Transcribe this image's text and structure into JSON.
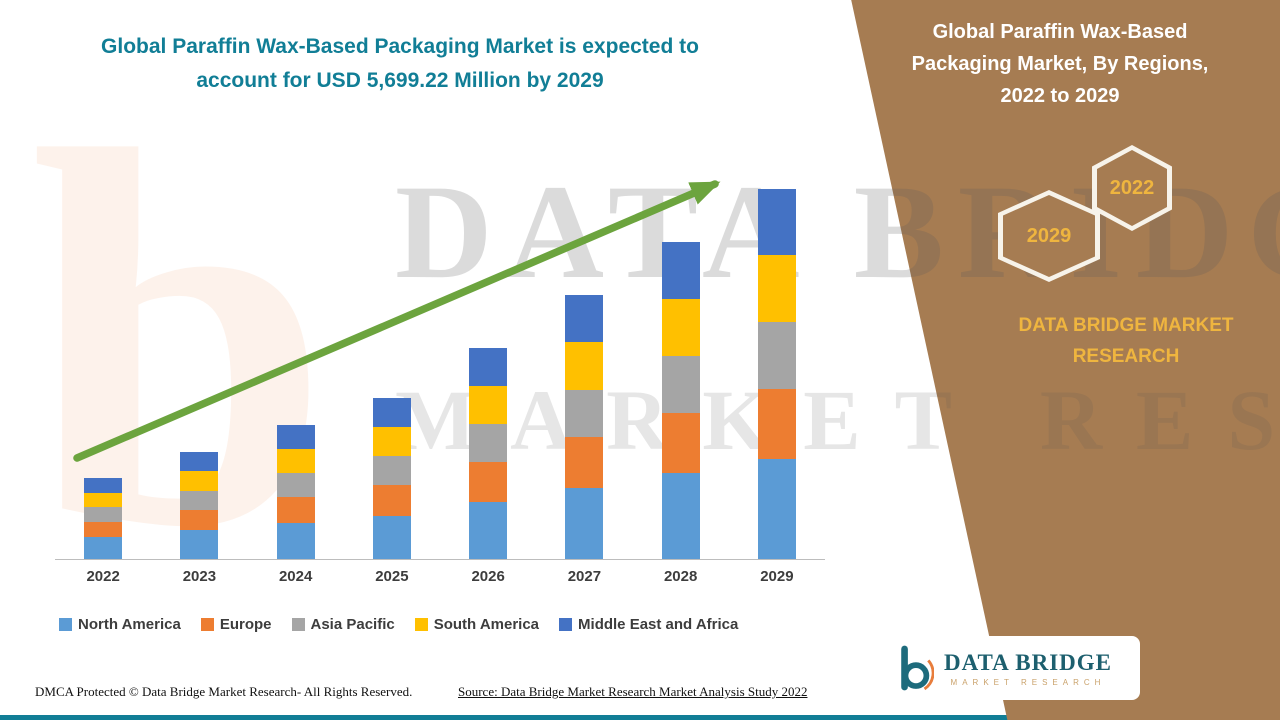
{
  "left": {
    "title": "Global Paraffin Wax-Based Packaging Market is expected to account for USD 5,699.22 Million by 2029",
    "footer_left": "DMCA Protected © Data Bridge Market Research- All Rights Reserved.",
    "footer_source": "Source: Data Bridge Market Research Market Analysis Study 2022"
  },
  "right": {
    "title": "Global Paraffin Wax-Based Packaging Market, By Regions, 2022 to 2029",
    "hex_back_label": "2022",
    "hex_front_label": "2029",
    "brand": "DATA BRIDGE MARKET RESEARCH",
    "panel_color": "#A67C52",
    "gold": "#EFB53F"
  },
  "watermark": {
    "line1": "DATA BRIDGE",
    "line2": "MARKET RESEARCH",
    "letter": "b"
  },
  "logo": {
    "name": "DATA BRIDGE",
    "sub": "MARKET RESEARCH"
  },
  "chart_data": {
    "type": "bar",
    "stacked": true,
    "title": "Global Paraffin Wax-Based Packaging Market, By Regions, 2022 to 2029",
    "unit": "USD Million",
    "categories": [
      "2022",
      "2023",
      "2024",
      "2025",
      "2026",
      "2027",
      "2028",
      "2029"
    ],
    "series": [
      {
        "name": "North America",
        "color": "#5B9BD5",
        "values": [
          335,
          445,
          559,
          669,
          878,
          1098,
          1318,
          1539
        ]
      },
      {
        "name": "Europe",
        "color": "#ED7D31",
        "values": [
          236,
          313,
          394,
          471,
          617,
          773,
          928,
          1083
        ]
      },
      {
        "name": "Asia Pacific",
        "color": "#A5A5A5",
        "values": [
          223,
          297,
          373,
          446,
          585,
          732,
          879,
          1026
        ]
      },
      {
        "name": "South America",
        "color": "#FFC000",
        "values": [
          223,
          297,
          373,
          446,
          585,
          732,
          879,
          1026
        ]
      },
      {
        "name": "Middle East and Africa",
        "color": "#4472C4",
        "values": [
          223,
          296,
          372,
          447,
          585,
          732,
          879,
          1025.22
        ]
      }
    ],
    "totals": [
      1240,
      1648,
      2071,
      2479,
      3250,
      4067,
      4883,
      5699.22
    ],
    "annotation": "Total expected to account for USD 5,699.22 Million by 2029",
    "ylim": [
      0,
      6000
    ],
    "gridlines": false,
    "legend_position": "bottom",
    "trend_arrow": true,
    "arrow_color": "#6CA43E"
  }
}
